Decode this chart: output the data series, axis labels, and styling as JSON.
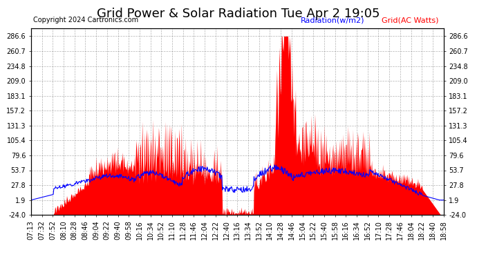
{
  "title": "Grid Power & Solar Radiation Tue Apr 2 19:05",
  "copyright": "Copyright 2024 Cartronics.com",
  "legend_radiation": "Radiation(w/m2)",
  "legend_grid": "Grid(AC Watts)",
  "radiation_color": "blue",
  "grid_color": "red",
  "background_color": "#ffffff",
  "yticks": [
    286.6,
    260.7,
    234.8,
    209.0,
    183.1,
    157.2,
    131.3,
    105.4,
    79.6,
    53.7,
    27.8,
    1.9,
    -24.0
  ],
  "ymin": -24.0,
  "ymax": 300.0,
  "xtick_labels": [
    "07:13",
    "07:32",
    "07:52",
    "08:10",
    "08:28",
    "08:46",
    "09:04",
    "09:22",
    "09:40",
    "09:58",
    "10:16",
    "10:34",
    "10:52",
    "11:10",
    "11:28",
    "11:46",
    "12:04",
    "12:22",
    "12:40",
    "13:16",
    "13:34",
    "13:52",
    "14:10",
    "14:28",
    "14:46",
    "15:04",
    "15:22",
    "15:40",
    "15:58",
    "16:16",
    "16:34",
    "16:52",
    "17:10",
    "17:28",
    "17:46",
    "18:04",
    "18:22",
    "18:40",
    "18:58"
  ],
  "title_fontsize": 13,
  "copyright_fontsize": 7,
  "legend_fontsize": 8,
  "tick_fontsize": 7,
  "figsize": [
    6.9,
    3.75
  ],
  "dpi": 100
}
